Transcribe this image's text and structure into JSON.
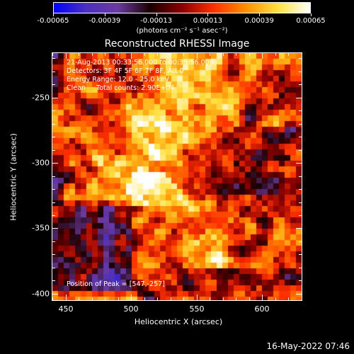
{
  "title": "Reconstructed RHESSI Image",
  "colorbar": {
    "labels": [
      "-0.00065",
      "-0.00039",
      "-0.00013",
      "0.00013",
      "0.00039",
      "0.00065"
    ],
    "units": "(photons cm⁻² s⁻¹ asec⁻²)",
    "min": -0.00065,
    "max": 0.00065
  },
  "info": {
    "line1": "21-Aug-2013 00:33:56.000 to 00:39:56.000",
    "line2": "Detectors: 3F 4F 5F 6F 7F 8F, Att 0",
    "line3": "Energy Range: 12.0 - 25.0 keV",
    "line4": "Clean     Total counts: 2.90E+04",
    "peak": "Position of Peak = [547,-257]"
  },
  "axes": {
    "xlabel": "Heliocentric X (arcsec)",
    "ylabel": "Heliocentric Y (arcsec)",
    "xticks": [
      "450",
      "500",
      "550",
      "600"
    ],
    "yticks": [
      "-250",
      "-300",
      "-350",
      "-400"
    ],
    "xrange": [
      440,
      630
    ],
    "yrange": [
      -405,
      -216
    ]
  },
  "timestamp": "16-May-2022 07:46",
  "colors": {
    "colormap": [
      "#0000ff",
      "#4b2fbf",
      "#6b3aa0",
      "#1a0000",
      "#8a0000",
      "#ff3000",
      "#ff9000",
      "#ffe040",
      "#ffffff"
    ]
  }
}
